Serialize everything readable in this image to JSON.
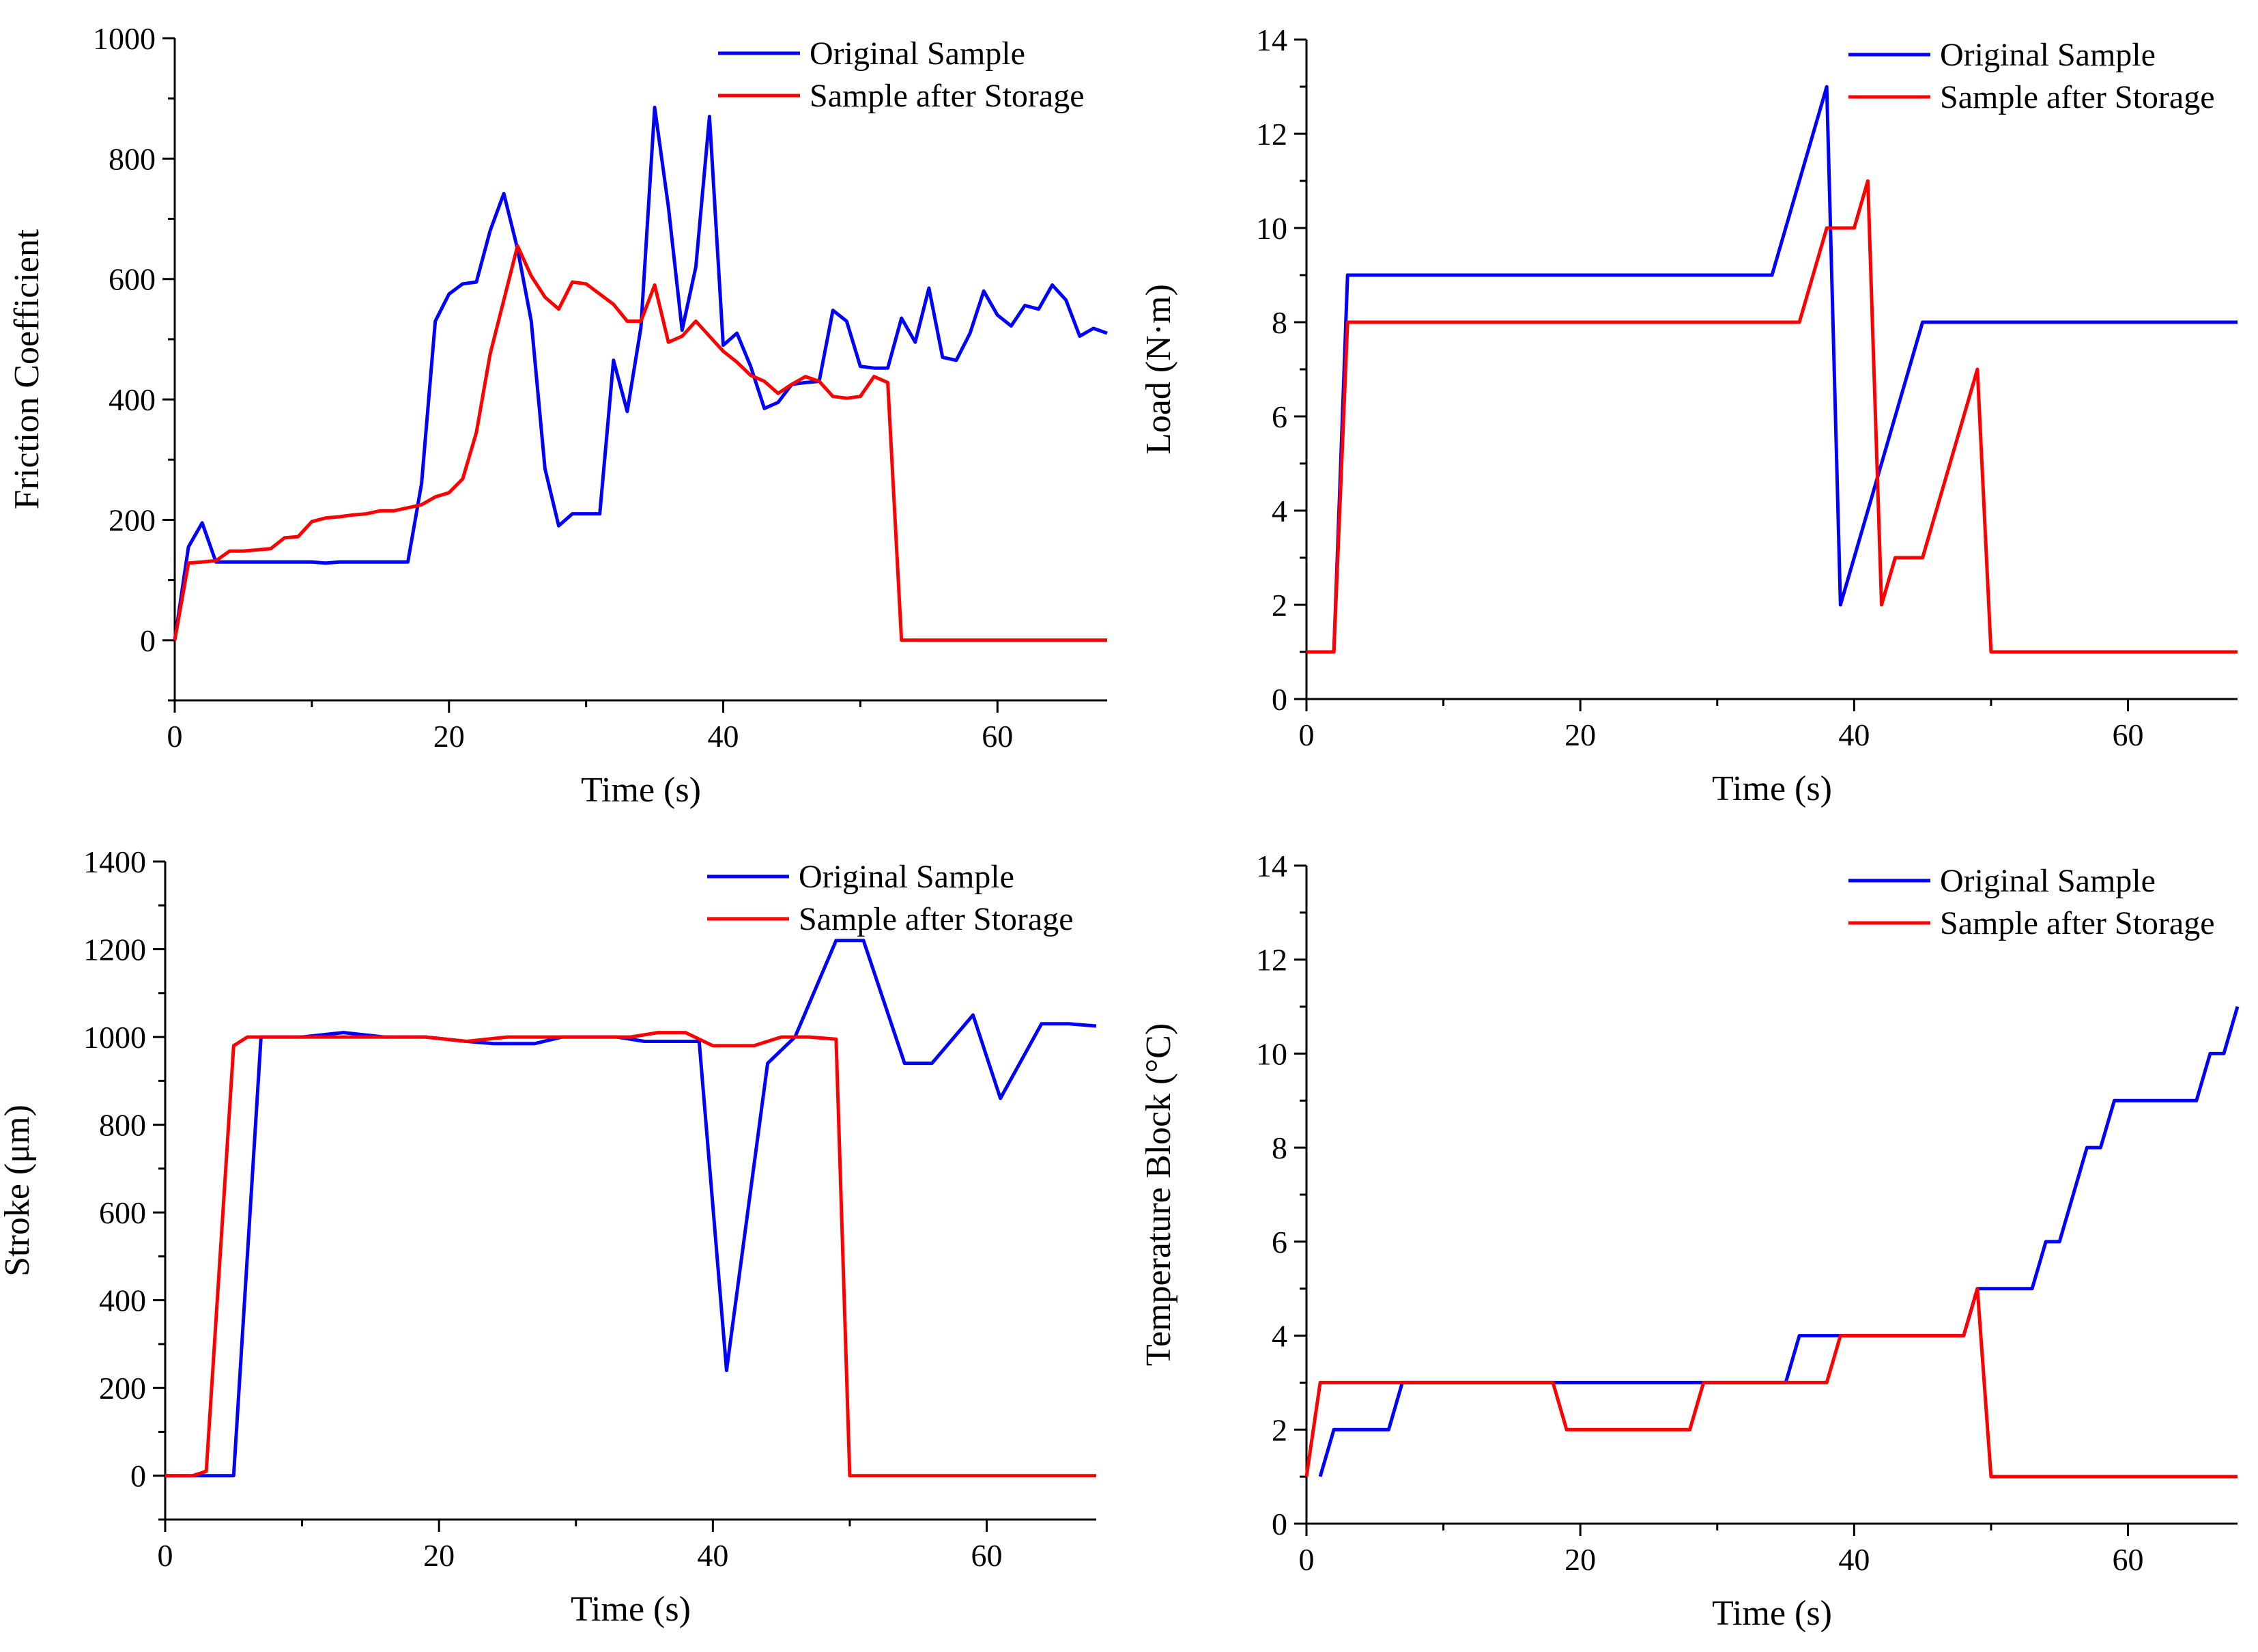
{
  "chart_data": [
    {
      "type": "line",
      "xlabel": "Time (s)",
      "ylabel": "Friction Coefficient",
      "xlim": [
        0,
        68
      ],
      "ylim": [
        -100,
        1000
      ],
      "xticks": [
        0,
        20,
        40,
        60
      ],
      "yticks": [
        0,
        200,
        400,
        600,
        800,
        1000
      ],
      "grid": false,
      "legend_position": "top-right",
      "series": [
        {
          "name": "Original Sample",
          "color": "#0000ff",
          "x": [
            0,
            1,
            2,
            3,
            4,
            5,
            6,
            7,
            8,
            9,
            10,
            11,
            12,
            13,
            14,
            15,
            16,
            17,
            18,
            19,
            20,
            21,
            22,
            23,
            24,
            25,
            26,
            27,
            28,
            29,
            30,
            31,
            32,
            33,
            34,
            35,
            36,
            37,
            38,
            39,
            40,
            41,
            42,
            43,
            44,
            45,
            46,
            47,
            48,
            49,
            50,
            51,
            52,
            53,
            54,
            55,
            56,
            57,
            58,
            59,
            60,
            61,
            62,
            63,
            64,
            65,
            66,
            67,
            68
          ],
          "y": [
            0,
            155,
            195,
            130,
            130,
            130,
            130,
            130,
            130,
            130,
            130,
            128,
            130,
            130,
            130,
            130,
            130,
            130,
            260,
            530,
            575,
            592,
            595,
            680,
            742,
            650,
            530,
            285,
            190,
            210,
            210,
            210,
            465,
            380,
            520,
            885,
            720,
            515,
            620,
            870,
            490,
            510,
            455,
            385,
            395,
            425,
            428,
            430,
            548,
            530,
            455,
            452,
            452,
            535,
            495,
            585,
            470,
            465,
            510,
            580,
            540,
            522,
            556,
            550,
            590,
            565,
            505,
            518,
            510
          ]
        },
        {
          "name": "Sample after Storage",
          "color": "#ff0000",
          "x": [
            0,
            1,
            2,
            3,
            4,
            5,
            6,
            7,
            8,
            9,
            10,
            11,
            12,
            13,
            14,
            15,
            16,
            17,
            18,
            19,
            20,
            21,
            22,
            23,
            24,
            25,
            26,
            27,
            28,
            29,
            30,
            31,
            32,
            33,
            34,
            35,
            36,
            37,
            38,
            39,
            40,
            41,
            42,
            43,
            44,
            45,
            46,
            47,
            48,
            49,
            50,
            51,
            52,
            53,
            54,
            55,
            56,
            57,
            58,
            59,
            60,
            61,
            62,
            63,
            64,
            65,
            66,
            67,
            68
          ],
          "y": [
            0,
            128,
            130,
            132,
            148,
            148,
            150,
            152,
            170,
            172,
            197,
            203,
            205,
            208,
            210,
            215,
            215,
            220,
            225,
            238,
            245,
            268,
            345,
            475,
            565,
            655,
            605,
            570,
            550,
            595,
            592,
            575,
            558,
            530,
            530,
            590,
            495,
            505,
            530,
            505,
            480,
            462,
            440,
            430,
            410,
            425,
            438,
            430,
            405,
            402,
            405,
            438,
            428,
            0,
            0,
            0,
            0,
            0,
            0,
            0,
            0,
            0,
            0,
            0,
            0,
            0,
            0,
            0,
            0
          ]
        }
      ]
    },
    {
      "type": "line",
      "xlabel": "Time (s)",
      "ylabel": "Load (N·m)",
      "xlim": [
        0,
        68
      ],
      "ylim": [
        0,
        14
      ],
      "xticks": [
        0,
        20,
        40,
        60
      ],
      "yticks": [
        0,
        2,
        4,
        6,
        8,
        10,
        12,
        14
      ],
      "grid": false,
      "legend_position": "top-right",
      "series": [
        {
          "name": "Original Sample",
          "color": "#0000ff",
          "x": [
            0,
            2,
            3,
            34,
            38,
            39,
            45,
            68
          ],
          "y": [
            1,
            1,
            9,
            9,
            13,
            2,
            8,
            8
          ]
        },
        {
          "name": "Sample after Storage",
          "color": "#ff0000",
          "x": [
            0,
            2,
            3,
            36,
            38,
            40,
            41,
            42,
            43,
            45,
            49,
            50,
            68
          ],
          "y": [
            1,
            1,
            8,
            8,
            10,
            10,
            11,
            2,
            3,
            3,
            7,
            1,
            1
          ]
        }
      ]
    },
    {
      "type": "line",
      "xlabel": "Time (s)",
      "ylabel": "Stroke (μm)",
      "xlim": [
        0,
        68
      ],
      "ylim": [
        -100,
        1400
      ],
      "xticks": [
        0,
        20,
        40,
        60
      ],
      "yticks": [
        0,
        200,
        400,
        600,
        800,
        1000,
        1200,
        1400
      ],
      "grid": false,
      "legend_position": "top-right",
      "series": [
        {
          "name": "Original Sample",
          "color": "#0000ff",
          "x": [
            0,
            5,
            7,
            10,
            13,
            16,
            19,
            22,
            24,
            27,
            29,
            31,
            33,
            35,
            39,
            41,
            44,
            46,
            49,
            51,
            54,
            56,
            59,
            61,
            64,
            66,
            68
          ],
          "y": [
            0,
            0,
            1000,
            1000,
            1010,
            1000,
            1000,
            990,
            985,
            985,
            1000,
            1000,
            1000,
            990,
            990,
            240,
            940,
            1000,
            1220,
            1220,
            940,
            940,
            1050,
            860,
            1030,
            1030,
            1025
          ]
        },
        {
          "name": "Sample after Storage",
          "color": "#ff0000",
          "x": [
            0,
            2,
            3,
            5,
            6,
            10,
            14,
            19,
            22,
            25,
            28,
            31,
            34,
            36,
            38,
            40,
            43,
            45,
            47,
            49,
            50,
            68
          ],
          "y": [
            0,
            0,
            10,
            980,
            1000,
            1000,
            1000,
            1000,
            990,
            1000,
            1000,
            1000,
            1000,
            1010,
            1010,
            980,
            980,
            1000,
            1000,
            995,
            0,
            0
          ]
        }
      ]
    },
    {
      "type": "line",
      "xlabel": "Time (s)",
      "ylabel": "Temperature Block (°C)",
      "xlim": [
        0,
        68
      ],
      "ylim": [
        0,
        14
      ],
      "xticks": [
        0,
        20,
        40,
        60
      ],
      "yticks": [
        0,
        2,
        4,
        6,
        8,
        10,
        12,
        14
      ],
      "grid": false,
      "legend_position": "top-right",
      "series": [
        {
          "name": "Original Sample",
          "color": "#0000ff",
          "x": [
            1,
            2,
            6,
            7,
            35,
            36,
            39,
            48,
            49,
            53,
            54,
            55,
            57,
            58,
            59,
            65,
            66,
            67,
            68
          ],
          "y": [
            1,
            2,
            2,
            3,
            3,
            4,
            4,
            4,
            5,
            5,
            6,
            6,
            8,
            8,
            9,
            9,
            10,
            10,
            11
          ]
        },
        {
          "name": "Sample after Storage",
          "color": "#ff0000",
          "x": [
            0,
            1,
            18,
            19,
            28,
            29,
            38,
            39,
            48,
            49,
            50,
            68
          ],
          "y": [
            1,
            3,
            3,
            2,
            2,
            3,
            3,
            4,
            4,
            5,
            1,
            1
          ]
        }
      ]
    }
  ]
}
